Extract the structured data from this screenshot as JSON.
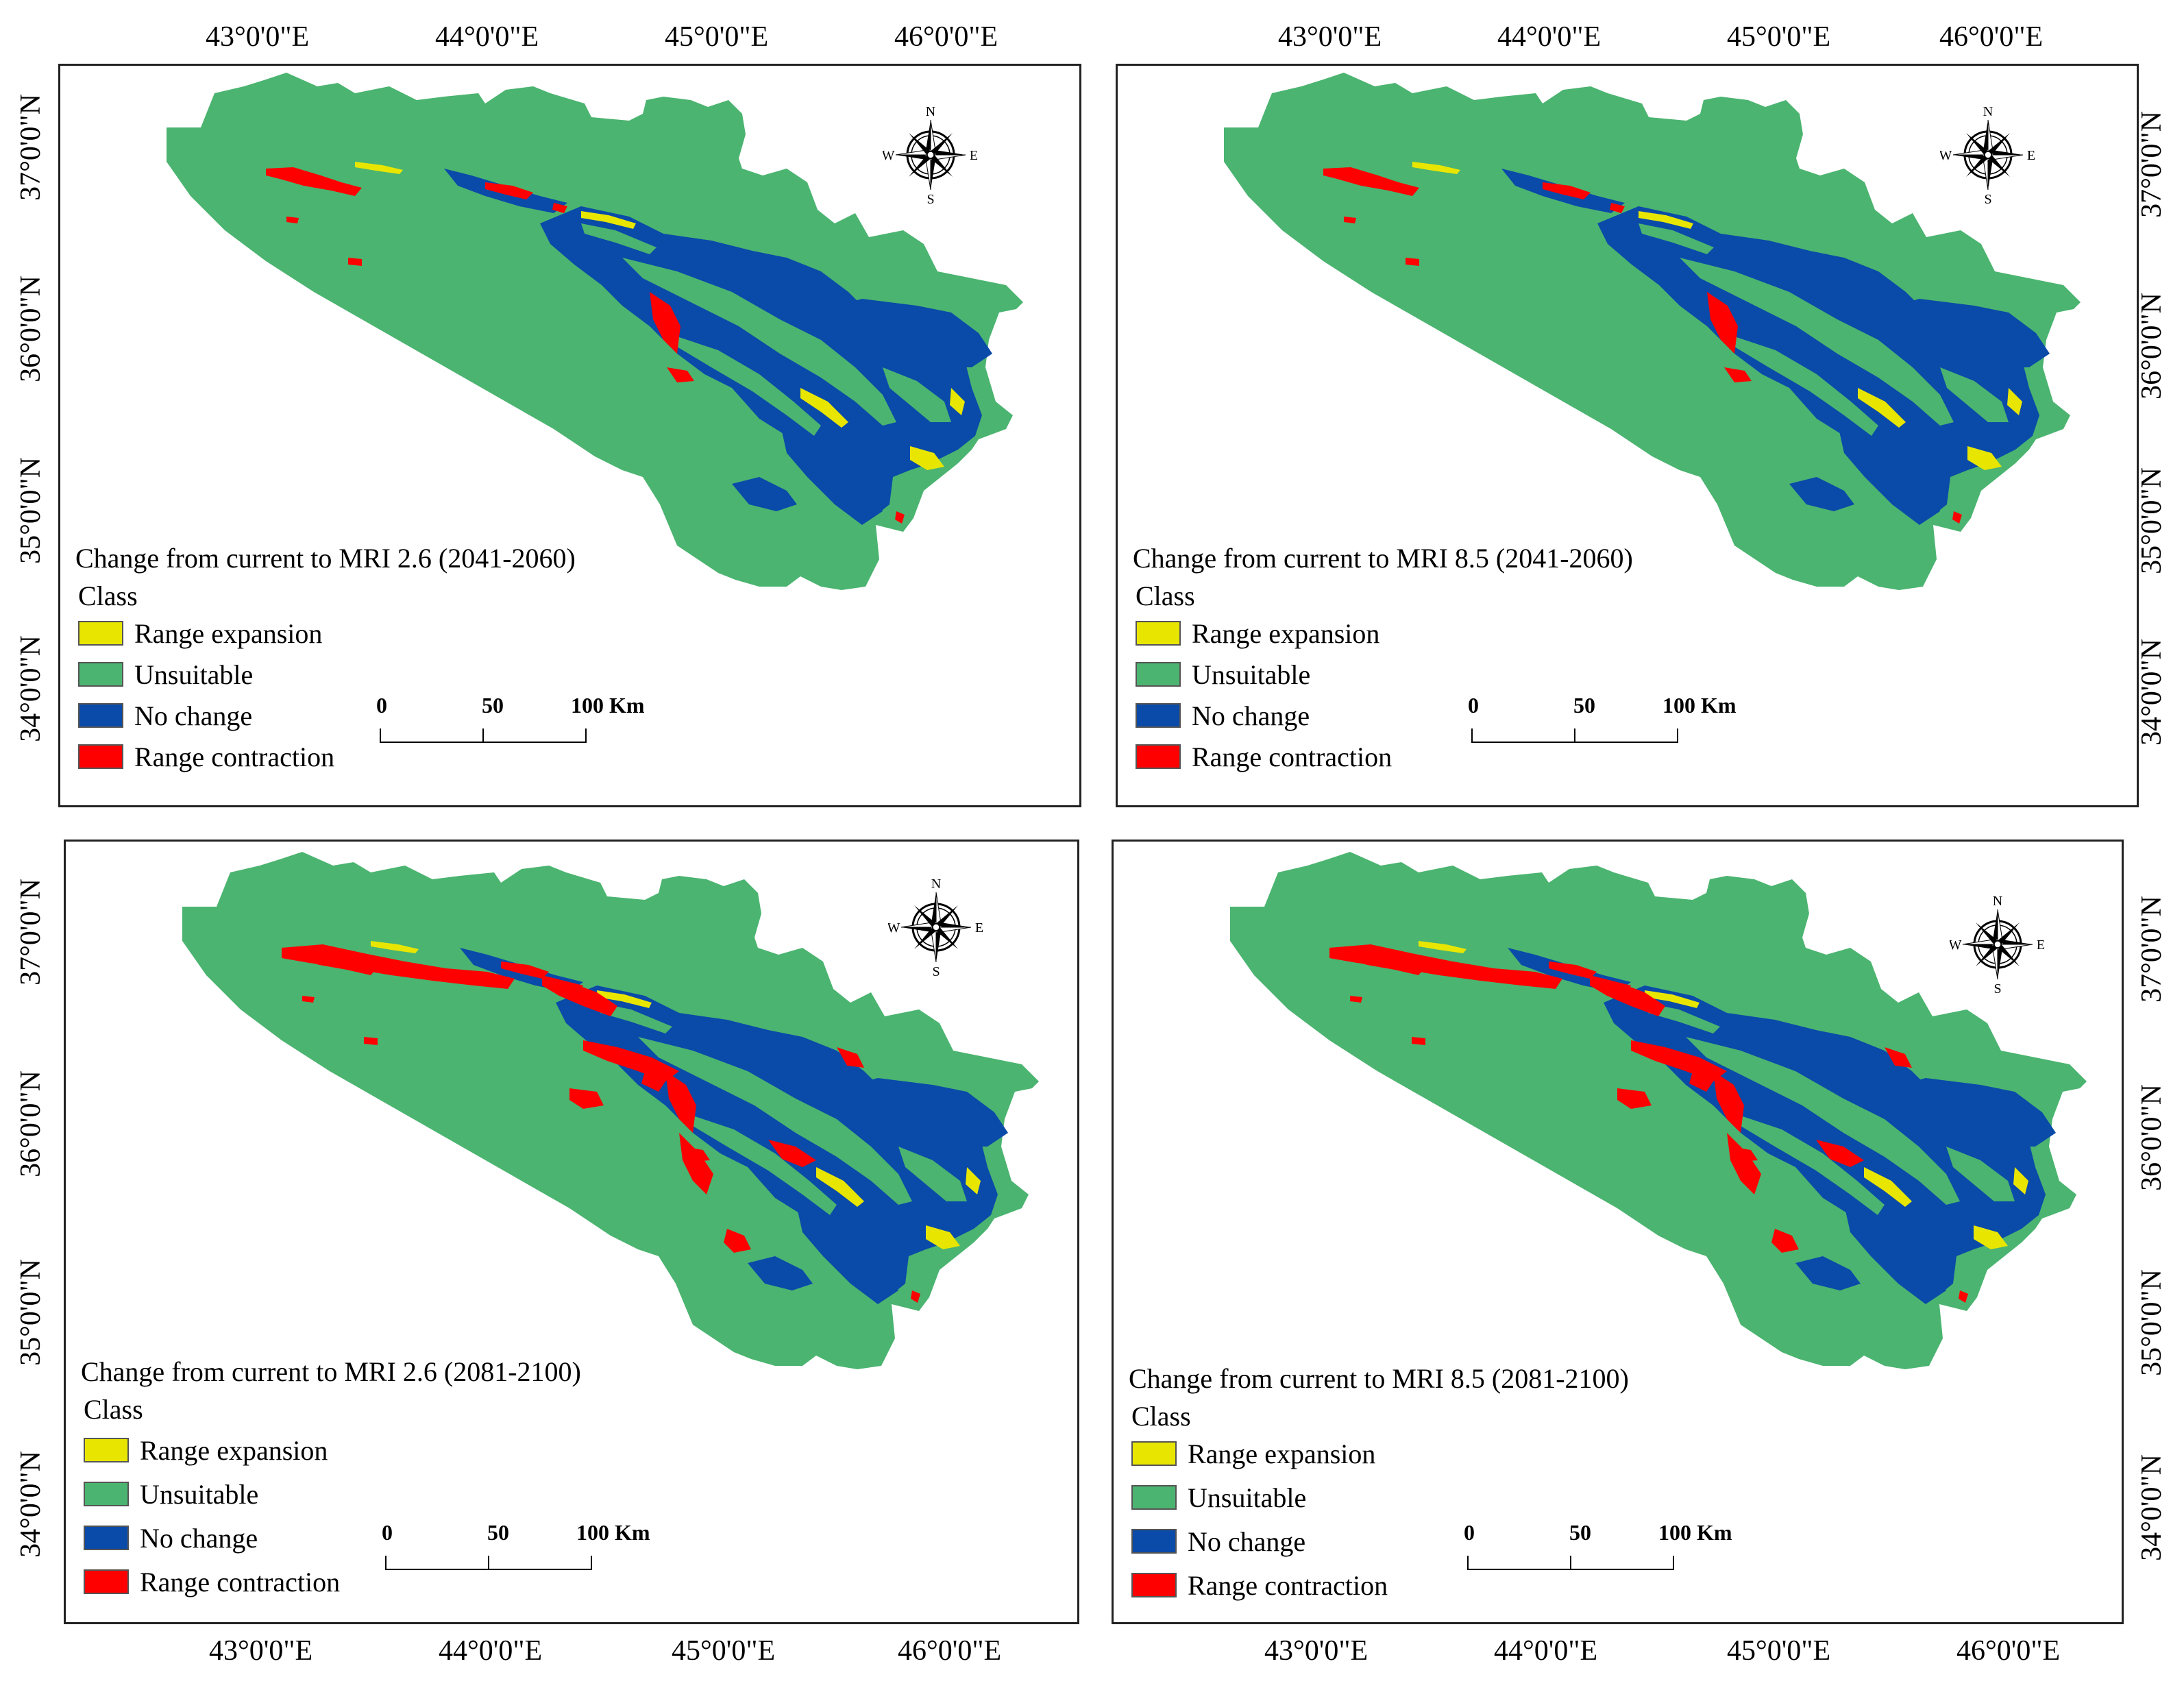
{
  "colors": {
    "range_expansion": "#e8e600",
    "unsuitable": "#4bb470",
    "no_change": "#0a4aa8",
    "range_contraction": "#ff0000"
  },
  "top_longitude_labels": [
    "43°0'0\"E",
    "44°0'0\"E",
    "45°0'0\"E",
    "46°0'0\"E",
    "43°0'0\"E",
    "44°0'0\"E",
    "45°0'0\"E",
    "46°0'0\"E"
  ],
  "bottom_longitude_labels": [
    "43°0'0\"E",
    "44°0'0\"E",
    "45°0'0\"E",
    "46°0'0\"E",
    "43°0'0\"E",
    "44°0'0\"E",
    "45°0'0\"E",
    "46°0'0\"E"
  ],
  "left_latitude_labels": [
    "37°0'0\"N",
    "36°0'0\"N",
    "35°0'0\"N",
    "34°0'0\"N",
    "37°0'0\"N",
    "36°0'0\"N",
    "35°0'0\"N",
    "34°0'0\"N"
  ],
  "right_latitude_labels": [
    "37°0'0\"N",
    "36°0'0\"N",
    "35°0'0\"N",
    "34°0'0\"N",
    "37°0'0\"N",
    "36°0'0\"N",
    "35°0'0\"N",
    "34°0'0\"N"
  ],
  "compass": {
    "north": "N",
    "south": "S",
    "east": "E",
    "west": "W",
    "icon": "north-arrow-compass-icon"
  },
  "scalebar": {
    "labels": [
      "0",
      "50",
      "100 Km"
    ]
  },
  "legend": {
    "heading": "Class",
    "items": [
      {
        "key": "range_expansion",
        "label": "Range expansion"
      },
      {
        "key": "unsuitable",
        "label": "Unsuitable"
      },
      {
        "key": "no_change",
        "label": "No change"
      },
      {
        "key": "range_contraction",
        "label": "Range contraction"
      }
    ]
  },
  "panels": [
    {
      "id": "tl",
      "title": "Change from current to MRI 2.6  (2041-2060)",
      "contraction_level": "low"
    },
    {
      "id": "tr",
      "title": "Change from current to MRI 8.5 (2041-2060)",
      "contraction_level": "low"
    },
    {
      "id": "bl",
      "title": "Change from current to MRI 2.6 (2081-2100)",
      "contraction_level": "high"
    },
    {
      "id": "br",
      "title": "Change from current to MRI 8.5 (2081-2100)",
      "contraction_level": "high"
    }
  ]
}
